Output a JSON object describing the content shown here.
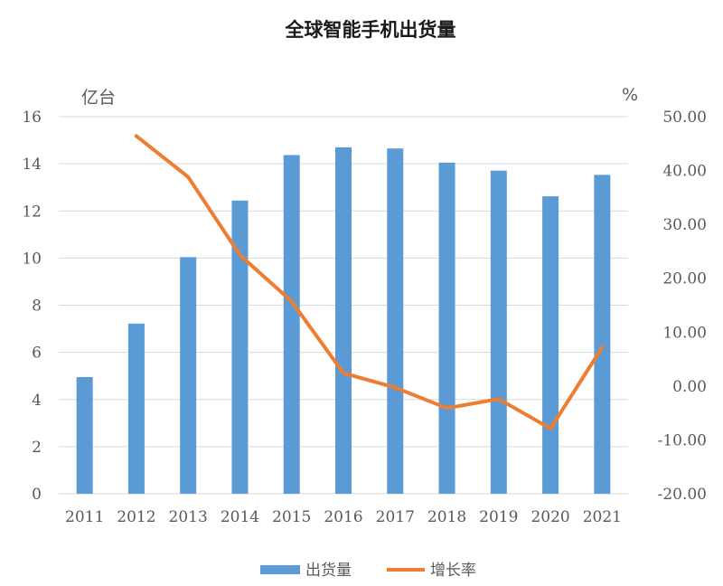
{
  "chart_data": {
    "type": "bar+line",
    "title": "全球智能手机出货量",
    "categories": [
      "2011",
      "2012",
      "2013",
      "2014",
      "2015",
      "2016",
      "2017",
      "2018",
      "2019",
      "2020",
      "2021"
    ],
    "left_axis": {
      "unit": "亿台",
      "min": 0,
      "max": 16,
      "step": 2,
      "ticks": [
        "0",
        "2",
        "4",
        "6",
        "8",
        "10",
        "12",
        "14",
        "16"
      ]
    },
    "right_axis": {
      "unit": "%",
      "min": -20,
      "max": 50,
      "step": 10,
      "ticks": [
        "-20.00",
        "-10.00",
        "0.00",
        "10.00",
        "20.00",
        "30.00",
        "40.00",
        "50.00"
      ]
    },
    "series": [
      {
        "name": "出货量",
        "type": "bar",
        "axis": "left",
        "color": "#5b9bd5",
        "values": [
          4.95,
          7.22,
          10.04,
          12.44,
          14.37,
          14.7,
          14.65,
          14.05,
          13.71,
          12.62,
          13.53
        ]
      },
      {
        "name": "增长率",
        "type": "line",
        "axis": "right",
        "color": "#ed7d31",
        "values": [
          null,
          46.4,
          38.8,
          24.3,
          15.7,
          2.4,
          -0.3,
          -4.1,
          -2.4,
          -7.9,
          7.2
        ]
      }
    ],
    "legend": {
      "position": "bottom",
      "items": [
        "出货量",
        "增长率"
      ]
    }
  }
}
